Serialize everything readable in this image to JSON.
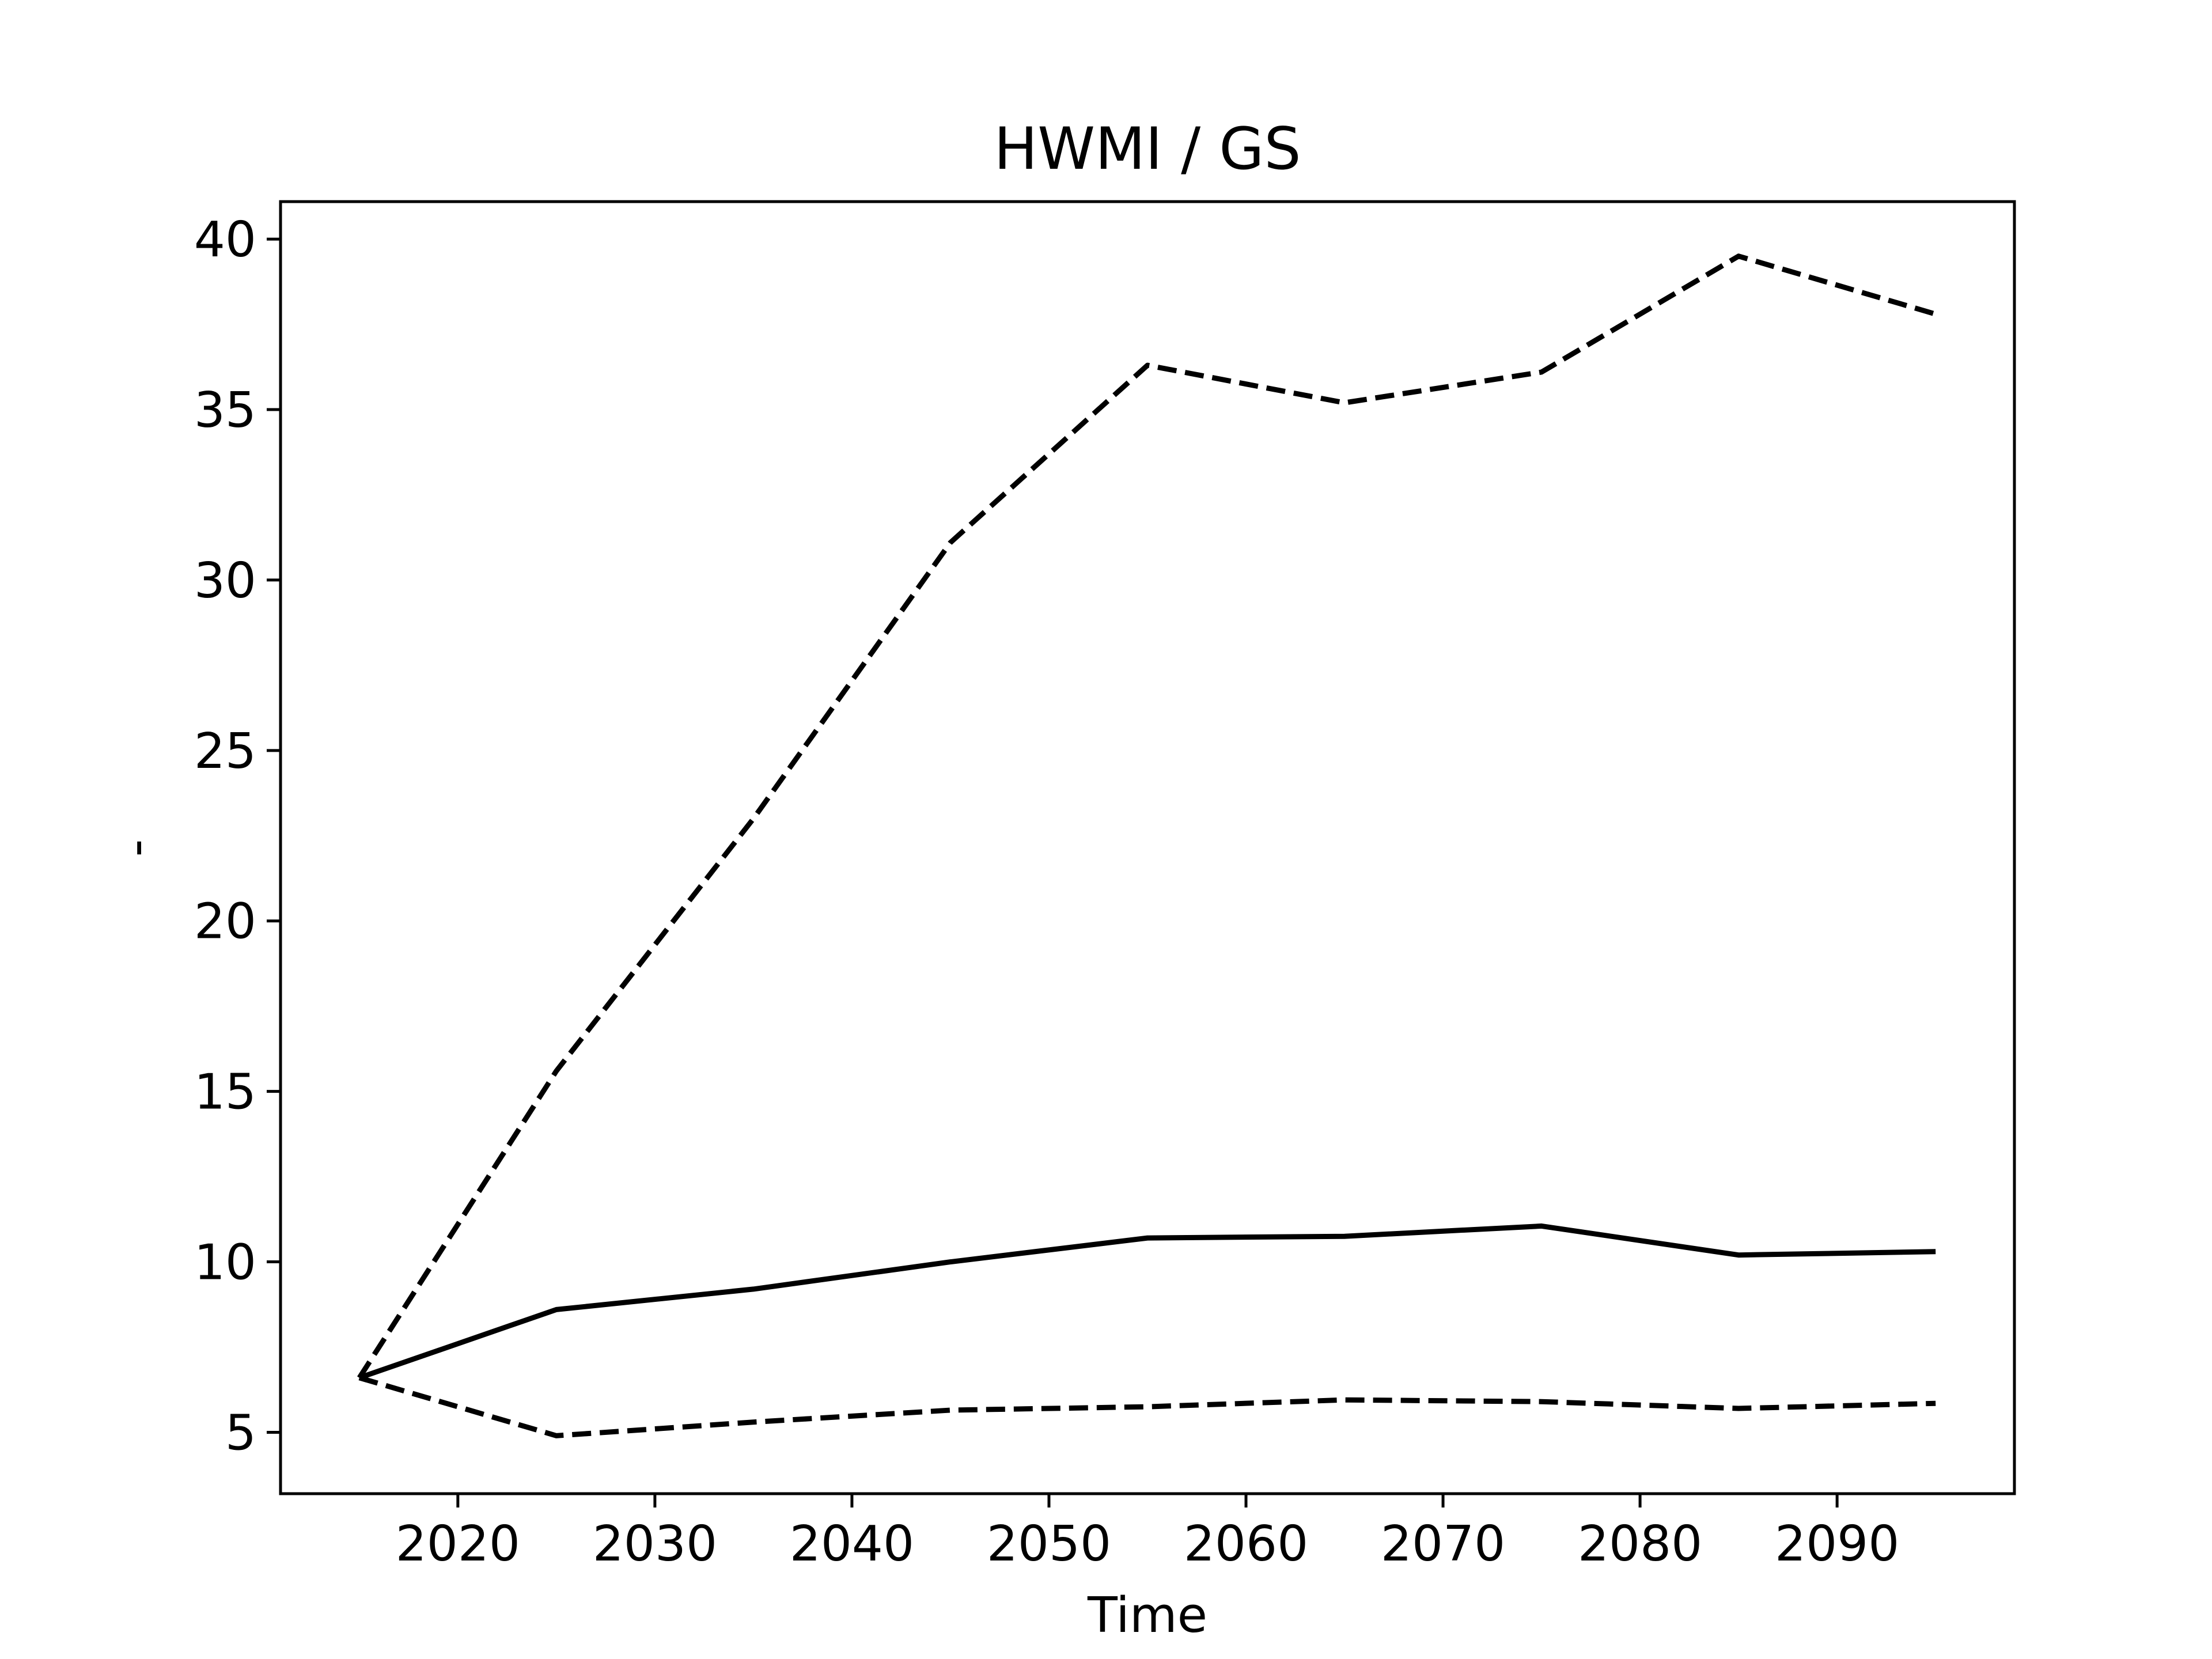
{
  "chart_data": {
    "type": "line",
    "title": "HWMI / GS",
    "xlabel": "Time",
    "ylabel": "-",
    "xlim": [
      2011,
      2099
    ],
    "ylim": [
      3.2,
      41.1
    ],
    "xticks": [
      2020,
      2030,
      2040,
      2050,
      2060,
      2070,
      2080,
      2090
    ],
    "yticks": [
      5,
      10,
      15,
      20,
      25,
      30,
      35,
      40
    ],
    "grid": false,
    "legend": "none",
    "x": [
      2015,
      2025,
      2035,
      2045,
      2055,
      2065,
      2075,
      2085,
      2095
    ],
    "series": [
      {
        "style": "solid",
        "color": "#000000",
        "values": [
          6.6,
          8.6,
          9.2,
          10.0,
          10.7,
          10.75,
          11.05,
          10.2,
          10.3
        ]
      },
      {
        "style": "dashed",
        "color": "#000000",
        "values": [
          6.6,
          15.6,
          23.0,
          31.1,
          36.3,
          35.2,
          36.1,
          39.5,
          37.8
        ]
      },
      {
        "style": "dashed",
        "color": "#000000",
        "values": [
          6.6,
          4.9,
          5.3,
          5.65,
          5.75,
          5.95,
          5.9,
          5.7,
          5.85
        ]
      }
    ]
  }
}
